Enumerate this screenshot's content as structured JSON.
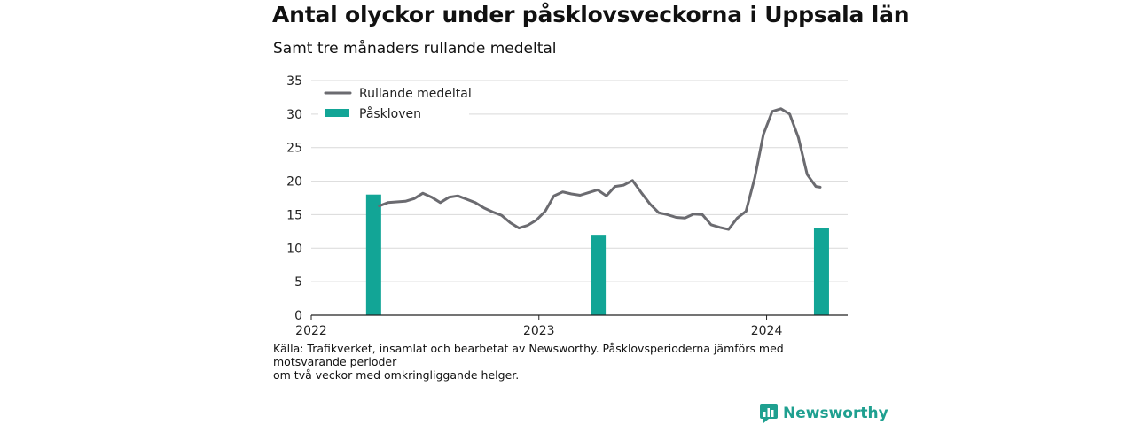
{
  "title": "Antal olyckor under påsklovsveckorna i Uppsala län",
  "subtitle": "Samt tre månaders rullande medeltal",
  "source_lines": [
    "Källa: Trafikverket, insamlat och bearbetat av Newsworthy. Påsklovsperioderna jämförs med motsvarande perioder",
    "om två veckor med omkringliggande helger."
  ],
  "brand": {
    "name": "Newsworthy",
    "icon": "newsworthy-logo-icon",
    "color": "#1fa090"
  },
  "colors": {
    "line": "#6b6b70",
    "bar": "#12a596",
    "grid": "#d9d9d9",
    "axis": "#222222"
  },
  "chart_data": {
    "type": "bar+line",
    "title": "Antal olyckor under påsklovsveckorna i Uppsala län",
    "subtitle": "Samt tre månaders rullande medeltal",
    "xlabel": "",
    "ylabel": "",
    "ylim": [
      0,
      35
    ],
    "yticks": [
      "0",
      "5",
      "10",
      "15",
      "20",
      "25",
      "30",
      "35"
    ],
    "xticks": [
      {
        "label": "2022",
        "date": "2022-01-01"
      },
      {
        "label": "2023",
        "date": "2023-01-01"
      },
      {
        "label": "2024",
        "date": "2024-01-01"
      }
    ],
    "xrange": [
      "2022-01-01",
      "2024-05-10"
    ],
    "grid": "horizontal",
    "legend_position": "top-left",
    "series": [
      {
        "name": "Rullande medeltal",
        "kind": "line",
        "points": [
          [
            "2022-04-20",
            16.3
          ],
          [
            "2022-05-04",
            16.8
          ],
          [
            "2022-05-18",
            16.9
          ],
          [
            "2022-06-01",
            17.0
          ],
          [
            "2022-06-15",
            17.4
          ],
          [
            "2022-06-29",
            18.2
          ],
          [
            "2022-07-13",
            17.6
          ],
          [
            "2022-07-27",
            16.8
          ],
          [
            "2022-08-10",
            17.6
          ],
          [
            "2022-08-24",
            17.8
          ],
          [
            "2022-09-07",
            17.3
          ],
          [
            "2022-09-21",
            16.8
          ],
          [
            "2022-10-05",
            16.0
          ],
          [
            "2022-10-19",
            15.4
          ],
          [
            "2022-11-02",
            14.9
          ],
          [
            "2022-11-16",
            13.8
          ],
          [
            "2022-11-30",
            13.0
          ],
          [
            "2022-12-14",
            13.4
          ],
          [
            "2022-12-28",
            14.2
          ],
          [
            "2023-01-11",
            15.5
          ],
          [
            "2023-01-25",
            17.8
          ],
          [
            "2023-02-08",
            18.4
          ],
          [
            "2023-02-22",
            18.1
          ],
          [
            "2023-03-08",
            17.9
          ],
          [
            "2023-03-22",
            18.3
          ],
          [
            "2023-04-05",
            18.7
          ],
          [
            "2023-04-19",
            17.8
          ],
          [
            "2023-05-03",
            19.2
          ],
          [
            "2023-05-17",
            19.4
          ],
          [
            "2023-05-31",
            20.1
          ],
          [
            "2023-06-14",
            18.3
          ],
          [
            "2023-06-28",
            16.6
          ],
          [
            "2023-07-12",
            15.3
          ],
          [
            "2023-07-26",
            15.0
          ],
          [
            "2023-08-09",
            14.6
          ],
          [
            "2023-08-23",
            14.5
          ],
          [
            "2023-09-06",
            15.1
          ],
          [
            "2023-09-20",
            15.0
          ],
          [
            "2023-10-04",
            13.5
          ],
          [
            "2023-10-18",
            13.1
          ],
          [
            "2023-11-01",
            12.8
          ],
          [
            "2023-11-15",
            14.5
          ],
          [
            "2023-11-29",
            15.5
          ],
          [
            "2023-12-13",
            20.5
          ],
          [
            "2023-12-27",
            27.0
          ],
          [
            "2024-01-10",
            30.4
          ],
          [
            "2024-01-24",
            30.8
          ],
          [
            "2024-02-07",
            30.0
          ],
          [
            "2024-02-21",
            26.5
          ],
          [
            "2024-03-06",
            21.0
          ],
          [
            "2024-03-20",
            19.2
          ],
          [
            "2024-03-27",
            19.1
          ]
        ]
      },
      {
        "name": "Påskloven",
        "kind": "bar",
        "points": [
          [
            "2022-04-11",
            18
          ],
          [
            "2023-04-06",
            12
          ],
          [
            "2024-03-29",
            13
          ]
        ]
      }
    ]
  }
}
